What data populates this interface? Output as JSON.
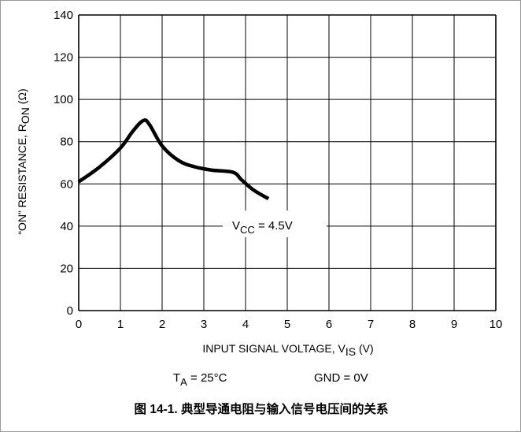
{
  "chart_data": {
    "type": "line",
    "xlabel": {
      "text": "INPUT SIGNAL VOLTAGE, V",
      "sub": "IS",
      "suffix": " (V)"
    },
    "ylabel": {
      "text": "“ON” RESISTANCE, R",
      "sub": "ON",
      "suffix": " (Ω)"
    },
    "xlim": [
      0,
      10
    ],
    "ylim": [
      0,
      140
    ],
    "x_ticks": [
      "0",
      "1",
      "2",
      "3",
      "4",
      "5",
      "6",
      "7",
      "8",
      "9",
      "10"
    ],
    "y_ticks": [
      "0",
      "20",
      "40",
      "60",
      "80",
      "100",
      "120",
      "140"
    ],
    "grid": true,
    "series": [
      {
        "name": "V_CC = 4.5V",
        "x": [
          0,
          0.5,
          1.0,
          1.3,
          1.55,
          1.7,
          2.0,
          2.4,
          2.8,
          3.2,
          3.7,
          3.9,
          4.2,
          4.55
        ],
        "y": [
          61,
          68,
          77,
          85,
          90,
          88,
          78,
          71,
          68,
          66.5,
          65.5,
          62,
          57,
          53
        ]
      }
    ],
    "series_label": {
      "text": "V",
      "sub": "CC",
      "suffix": " = 4.5V"
    },
    "annotations": {
      "ta": {
        "text": "T",
        "sub": "A",
        "suffix": " = 25°C"
      },
      "gnd": "GND = 0V"
    },
    "caption": "图 14-1. 典型导通电阻与输入信号电压间的关系"
  }
}
